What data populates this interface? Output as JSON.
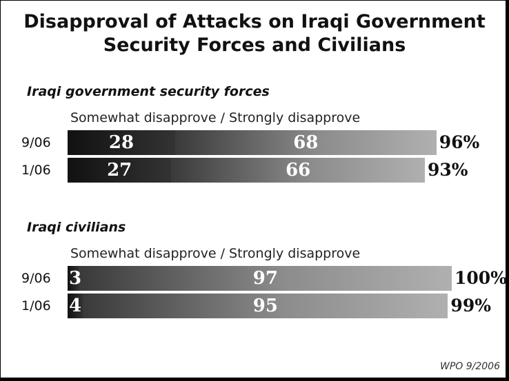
{
  "chart_data": {
    "type": "bar",
    "orientation": "horizontal",
    "stacked": true,
    "title": "Disapproval of Attacks on Iraqi Government Security Forces and Civilians",
    "title_lines": [
      "Disapproval of Attacks on Iraqi Government",
      "Security Forces and Civilians"
    ],
    "series_names": [
      "Somewhat disapprove",
      "Strongly disapprove"
    ],
    "legend_text": "Somewhat disapprove / Strongly disapprove",
    "xlim": [
      0,
      100
    ],
    "panels": [
      {
        "label": "Iraqi government security forces",
        "categories": [
          "9/06",
          "1/06"
        ],
        "series": [
          {
            "name": "Somewhat disapprove",
            "values": [
              28,
              27
            ]
          },
          {
            "name": "Strongly disapprove",
            "values": [
              68,
              66
            ]
          }
        ],
        "totals": [
          "96%",
          "93%"
        ]
      },
      {
        "label": "Iraqi civilians",
        "categories": [
          "9/06",
          "1/06"
        ],
        "series": [
          {
            "name": "Somewhat disapprove",
            "values": [
              3,
              4
            ]
          },
          {
            "name": "Strongly disapprove",
            "values": [
              97,
              95
            ]
          }
        ],
        "totals": [
          "100%",
          "99%"
        ]
      }
    ],
    "colors": {
      "somewhat": "#222222",
      "strongly": "#808080"
    }
  },
  "source": "WPO 9/2006"
}
